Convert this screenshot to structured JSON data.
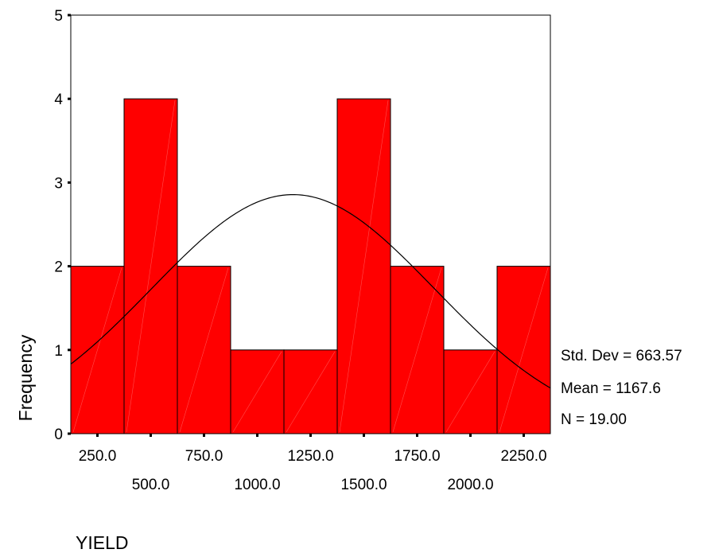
{
  "chart_data": {
    "type": "bar",
    "subtype": "histogram",
    "xlabel": "YIELD",
    "ylabel": "Frequency",
    "bin_width": 250,
    "bins": [
      {
        "center": 250,
        "count": 2
      },
      {
        "center": 500,
        "count": 4
      },
      {
        "center": 750,
        "count": 2
      },
      {
        "center": 1000,
        "count": 1
      },
      {
        "center": 1250,
        "count": 1
      },
      {
        "center": 1500,
        "count": 4
      },
      {
        "center": 1750,
        "count": 2
      },
      {
        "center": 2000,
        "count": 1
      },
      {
        "center": 2250,
        "count": 2
      }
    ],
    "xlim": [
      125,
      2375
    ],
    "ylim": [
      0,
      5
    ],
    "y_ticks": [
      "0",
      "1",
      "2",
      "3",
      "4",
      "5"
    ],
    "x_ticks_upper": [
      "250.0",
      "750.0",
      "1250.0",
      "1750.0",
      "2250.0"
    ],
    "x_ticks_lower": [
      "500.0",
      "1000.0",
      "1500.0",
      "2000.0"
    ],
    "normal_curve": {
      "mean": 1167.6,
      "std_dev": 663.57,
      "n": 19
    },
    "stats": {
      "std_dev_label": "Std. Dev = 663.57",
      "mean_label": "Mean = 1167.6",
      "n_label": "N = 19.00"
    },
    "colors": {
      "bar_fill": "#ff0000",
      "bar_stroke": "#000000",
      "curve": "#000000"
    }
  }
}
